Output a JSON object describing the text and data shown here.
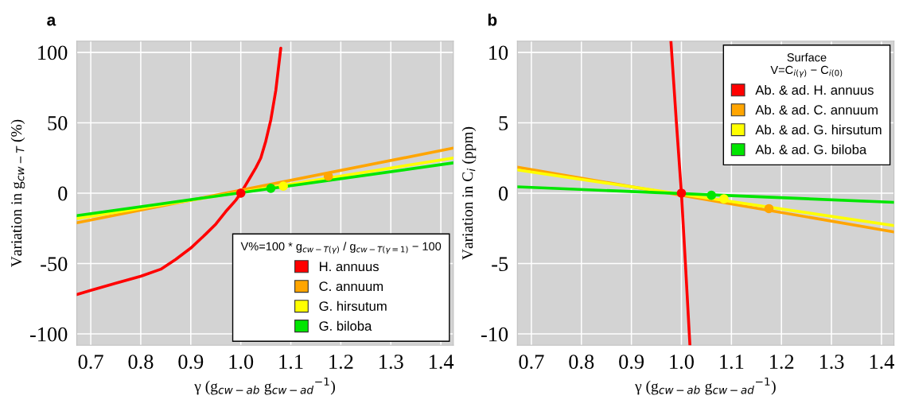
{
  "chart_data": [
    {
      "type": "line",
      "title": "a",
      "xlabel": "γ (g$_{cw−ab}$ g$_{cw−ad}$$^{−1}$)",
      "ylabel": "Variation in g$_{cw−T}$ (%)",
      "legend_title": "V%=100 * g$_{cw−T(γ)}$ / g$_{cw−T(γ=1)}$ − 100",
      "xlim": [
        0.672,
        1.425
      ],
      "ylim": [
        -108,
        108
      ],
      "xticks": [
        {
          "value": 0.7,
          "label": "0.7"
        },
        {
          "value": 0.8,
          "label": "0.8"
        },
        {
          "value": 0.9,
          "label": "0.9"
        },
        {
          "value": 1.0,
          "label": "1.0"
        },
        {
          "value": 1.1,
          "label": "1.1"
        },
        {
          "value": 1.2,
          "label": "1.2"
        },
        {
          "value": 1.3,
          "label": "1.3"
        },
        {
          "value": 1.4,
          "label": "1.4"
        }
      ],
      "yticks": [
        -100,
        -50,
        0,
        50,
        100
      ],
      "grid": true,
      "legend": "bottom right",
      "marker": "none",
      "series": [
        {
          "name": "H. annuus",
          "color": "#ff0000",
          "x": [
            0.672,
            0.7,
            0.75,
            0.8,
            0.84,
            0.87,
            0.9,
            0.93,
            0.95,
            0.97,
            0.98,
            0.99,
            1.0,
            1.01,
            1.02,
            1.03,
            1.04,
            1.05,
            1.06,
            1.07,
            1.08
          ],
          "values": [
            -72,
            -69,
            -64,
            -59,
            -54,
            -47,
            -39,
            -29,
            -22,
            -13,
            -9,
            -5,
            0,
            6,
            12,
            18,
            25,
            37,
            52,
            73,
            103
          ]
        },
        {
          "name": "C. annuum",
          "color": "#ffa500",
          "x": [
            0.672,
            1.425
          ],
          "values": [
            -21,
            32
          ]
        },
        {
          "name": "G. hirsutum",
          "color": "#ffff00",
          "x": [
            0.672,
            1.425
          ],
          "values": [
            -18,
            25
          ]
        },
        {
          "name": "G. biloba",
          "color": "#00e600",
          "x": [
            0.672,
            1.425
          ],
          "values": [
            -16,
            21.5
          ]
        },
        {
          "type": "scatter",
          "marker": "circle",
          "color": "#ff0000",
          "x": [
            1.0
          ],
          "values": [
            0
          ]
        },
        {
          "type": "scatter",
          "marker": "circle",
          "color": "#ffa500",
          "x": [
            1.175
          ],
          "values": [
            12
          ]
        },
        {
          "type": "scatter",
          "marker": "circle",
          "color": "#ffff00",
          "x": [
            1.085
          ],
          "values": [
            5
          ]
        },
        {
          "type": "scatter",
          "marker": "circle",
          "color": "#00e600",
          "x": [
            1.06
          ],
          "values": [
            3.5
          ]
        }
      ]
    },
    {
      "type": "line",
      "title": "b",
      "xlabel": "γ (g$_{cw−ab}$ g$_{cw−ad}$$^{−1}$)",
      "ylabel": "Variation in C$_{i}$ (ppm)",
      "legend_title": "Surface\nV=C$_{i(γ)}$ − C$_{i(0)}$",
      "xlim": [
        0.672,
        1.425
      ],
      "ylim": [
        -10.8,
        10.8
      ],
      "xticks": [
        {
          "value": 0.7,
          "label": "0.7"
        },
        {
          "value": 0.8,
          "label": "0.8"
        },
        {
          "value": 0.9,
          "label": "0.9"
        },
        {
          "value": 1.0,
          "label": "1.0"
        },
        {
          "value": 1.1,
          "label": "1.1"
        },
        {
          "value": 1.2,
          "label": "1.2"
        },
        {
          "value": 1.3,
          "label": "1.3"
        },
        {
          "value": 1.4,
          "label": "1.4"
        }
      ],
      "yticks": [
        -10,
        -5,
        0,
        5,
        10
      ],
      "grid": true,
      "legend": "top right",
      "marker": "none",
      "series": [
        {
          "name": "Ab. & ad. H. annuus",
          "color": "#ff0000",
          "x": [
            0.979,
            0.99,
            1.0,
            1.008,
            1.017
          ],
          "values": [
            10.8,
            5,
            0,
            -5,
            -10.8
          ]
        },
        {
          "name": "Ab. & ad. C. annuum",
          "color": "#ffa500",
          "x": [
            0.672,
            1.425
          ],
          "values": [
            1.85,
            -2.75
          ]
        },
        {
          "name": "Ab. & ad. G. hirsutum",
          "color": "#ffff00",
          "x": [
            0.672,
            1.425
          ],
          "values": [
            1.65,
            -2.3
          ]
        },
        {
          "name": "Ab. & ad. G. biloba",
          "color": "#00e600",
          "x": [
            0.672,
            1.425
          ],
          "values": [
            0.45,
            -0.65
          ]
        },
        {
          "type": "scatter",
          "marker": "circle",
          "color": "#ff0000",
          "x": [
            1.0
          ],
          "values": [
            0
          ]
        },
        {
          "type": "scatter",
          "marker": "circle",
          "color": "#ffa500",
          "x": [
            1.175
          ],
          "values": [
            -1.1
          ]
        },
        {
          "type": "scatter",
          "marker": "circle",
          "color": "#ffff00",
          "x": [
            1.085
          ],
          "values": [
            -0.4
          ]
        },
        {
          "type": "scatter",
          "marker": "circle",
          "color": "#00e600",
          "x": [
            1.06
          ],
          "values": [
            -0.15
          ]
        }
      ]
    }
  ]
}
